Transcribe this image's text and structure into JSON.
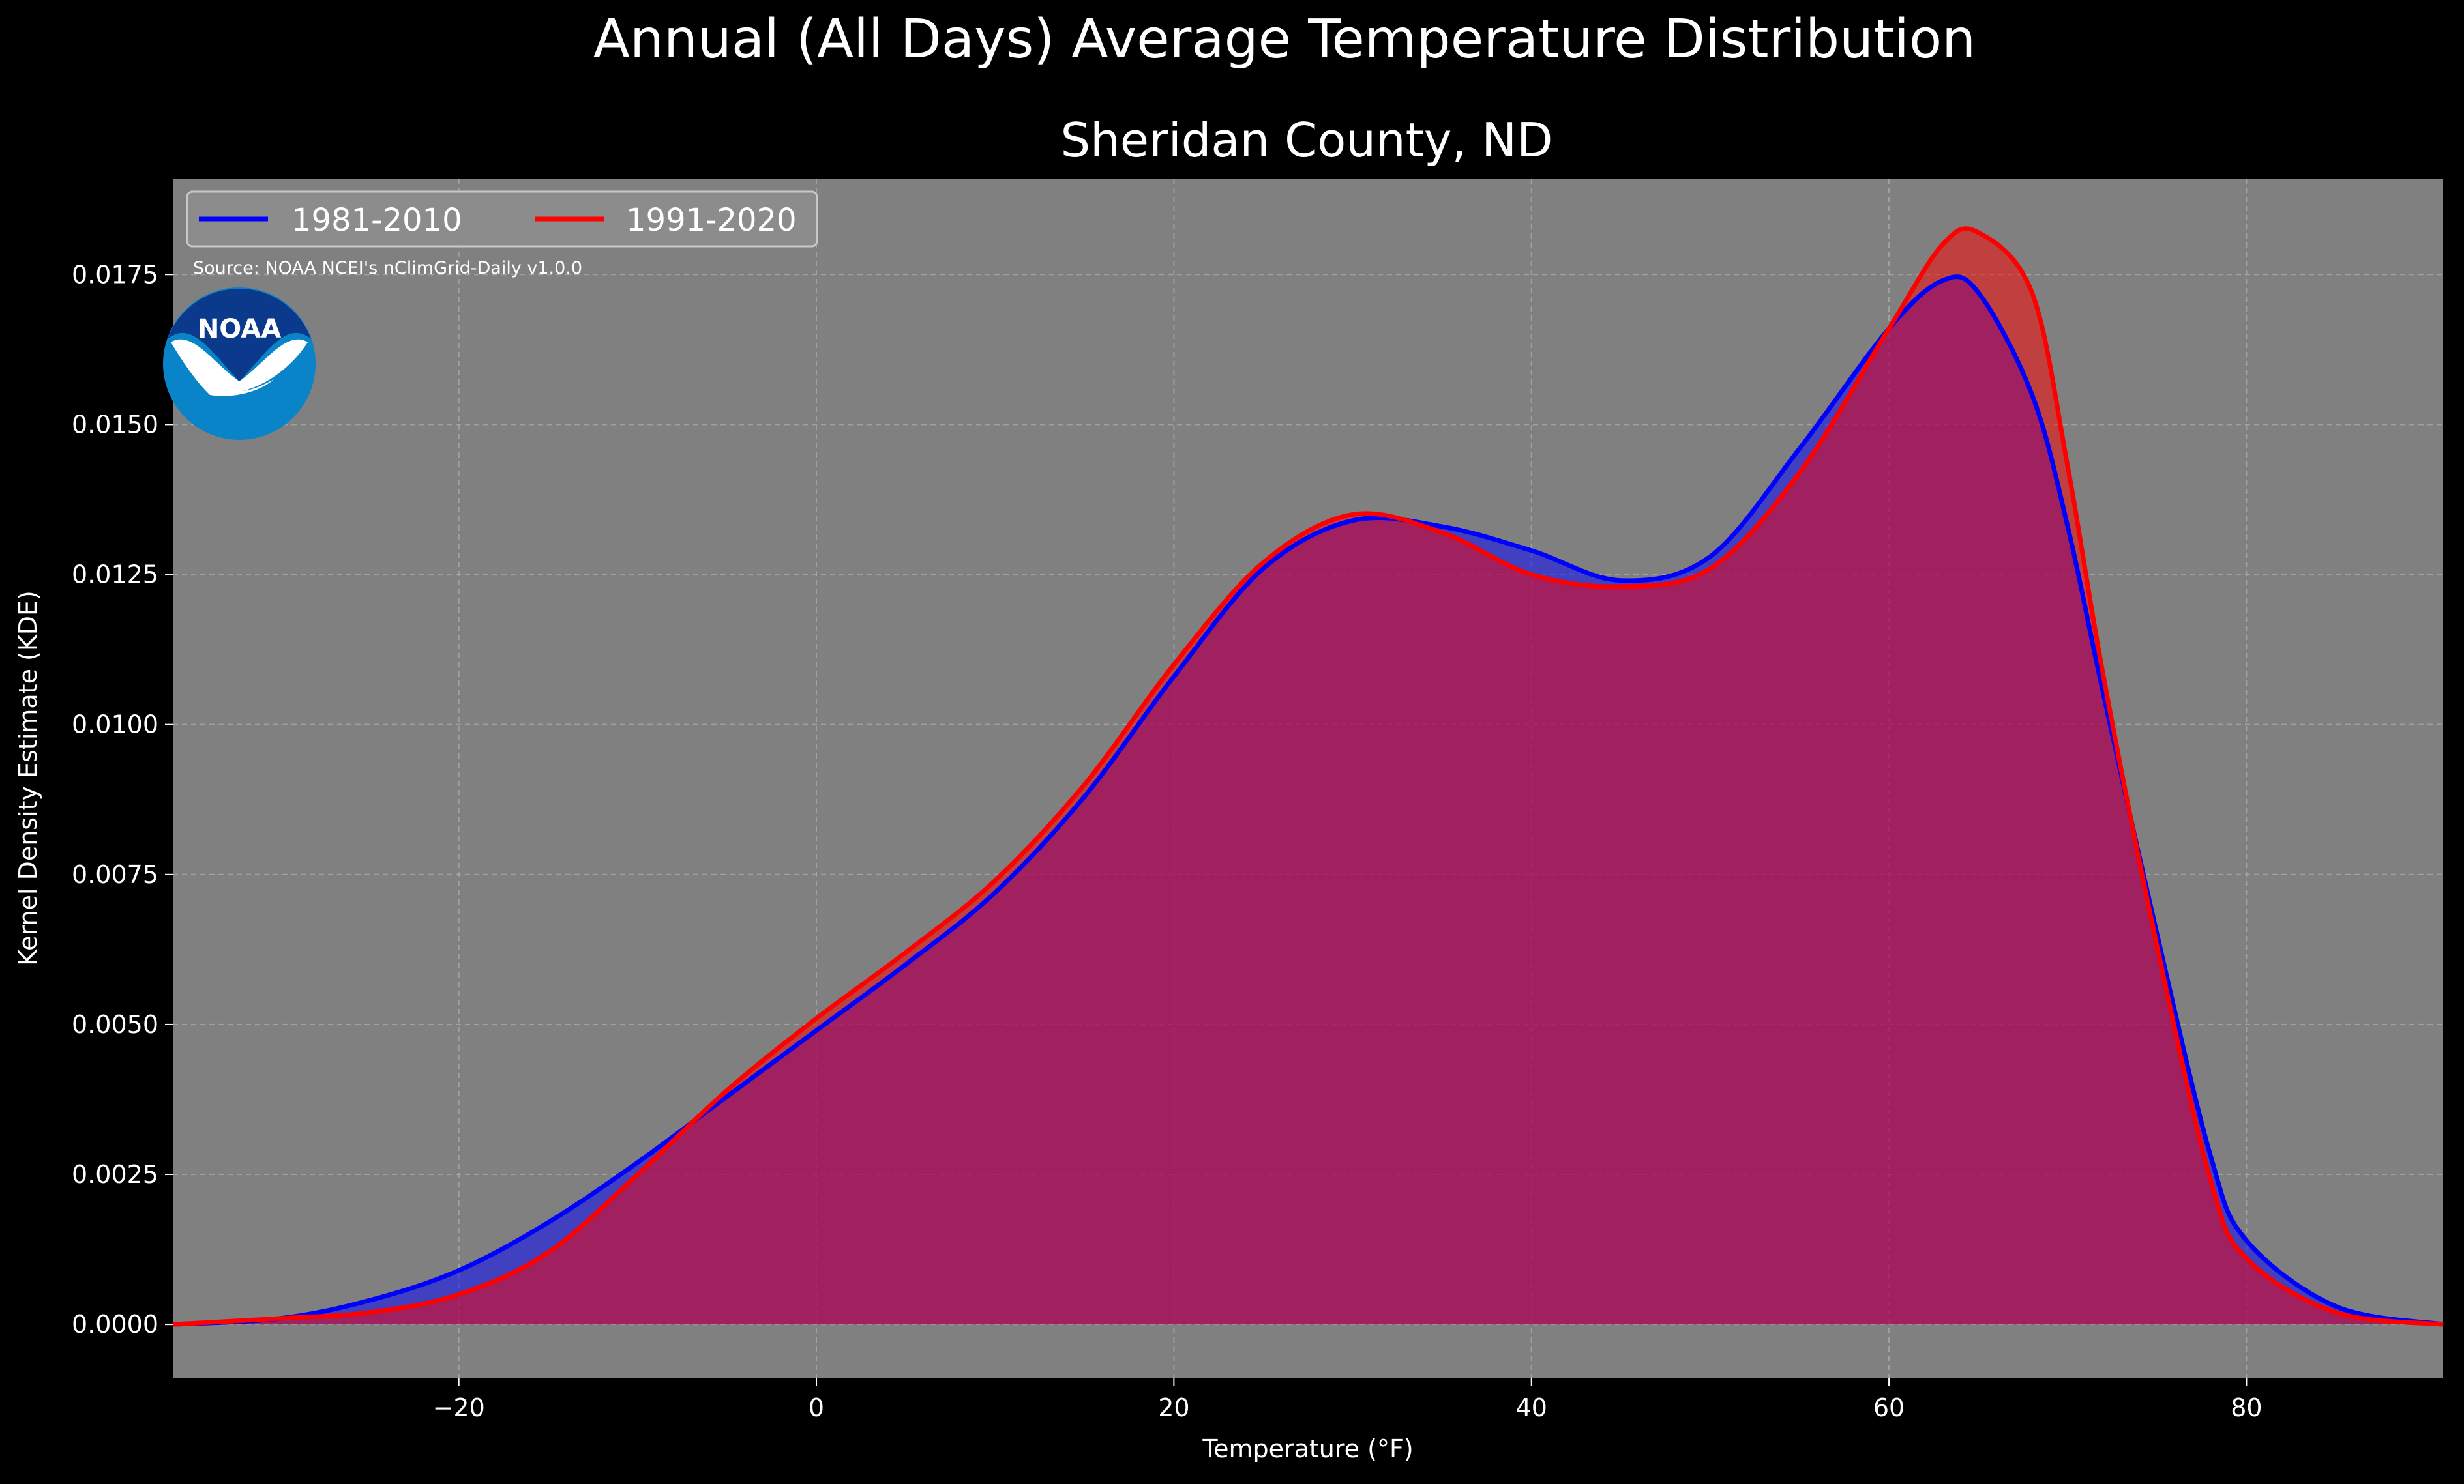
{
  "suptitle": "Annual (All Days) Average Temperature Distribution",
  "logo_text": "NOAA",
  "source_note": "Source: NOAA NCEI's nClimGrid-Daily v1.0.0",
  "chart_data": {
    "type": "area",
    "title": "Sheridan County, ND",
    "xlabel": "Temperature (°F)",
    "ylabel": "Kernel Density Estimate (KDE)",
    "xlim": [
      -36,
      91
    ],
    "ylim": [
      -0.0009,
      0.0191
    ],
    "xticks": [
      -20,
      0,
      20,
      40,
      60,
      80
    ],
    "yticks": [
      0.0,
      0.0025,
      0.005,
      0.0075,
      0.01,
      0.0125,
      0.015,
      0.0175
    ],
    "ytick_labels": [
      "0.0000",
      "0.0025",
      "0.0050",
      "0.0075",
      "0.0100",
      "0.0125",
      "0.0150",
      "0.0175"
    ],
    "grid": true,
    "legend_position": "top-left",
    "colors": {
      "figure_background": "#000000",
      "axes_background": "#808080",
      "text": "#ffffff",
      "grid": "#b0b0b0",
      "series_1981_2010": "#0000ff",
      "series_1991_2020": "#ff0000"
    },
    "x": [
      -36,
      -30,
      -25,
      -20,
      -15,
      -10,
      -5,
      0,
      5,
      10,
      15,
      20,
      25,
      30,
      35,
      40,
      45,
      50,
      55,
      60,
      63,
      65,
      68,
      70,
      72,
      75,
      78,
      80,
      85,
      91
    ],
    "series": [
      {
        "name": "1981-2010",
        "color": "#0000ff",
        "values": [
          0.0,
          0.0001,
          0.0004,
          0.0009,
          0.0017,
          0.0027,
          0.0038,
          0.0049,
          0.006,
          0.0072,
          0.0088,
          0.0108,
          0.0126,
          0.0134,
          0.0133,
          0.0129,
          0.0124,
          0.0128,
          0.0146,
          0.0166,
          0.0174,
          0.0172,
          0.0155,
          0.0133,
          0.0105,
          0.0065,
          0.0028,
          0.0014,
          0.0003,
          0.0
        ]
      },
      {
        "name": "1991-2020",
        "color": "#ff0000",
        "values": [
          0.0,
          0.0001,
          0.0002,
          0.0005,
          0.0012,
          0.0025,
          0.0039,
          0.0051,
          0.0062,
          0.0074,
          0.009,
          0.011,
          0.0127,
          0.0135,
          0.0132,
          0.0125,
          0.0123,
          0.0126,
          0.0142,
          0.0166,
          0.018,
          0.0182,
          0.0172,
          0.0143,
          0.0108,
          0.0063,
          0.0024,
          0.0011,
          0.0002,
          0.0
        ]
      }
    ]
  }
}
